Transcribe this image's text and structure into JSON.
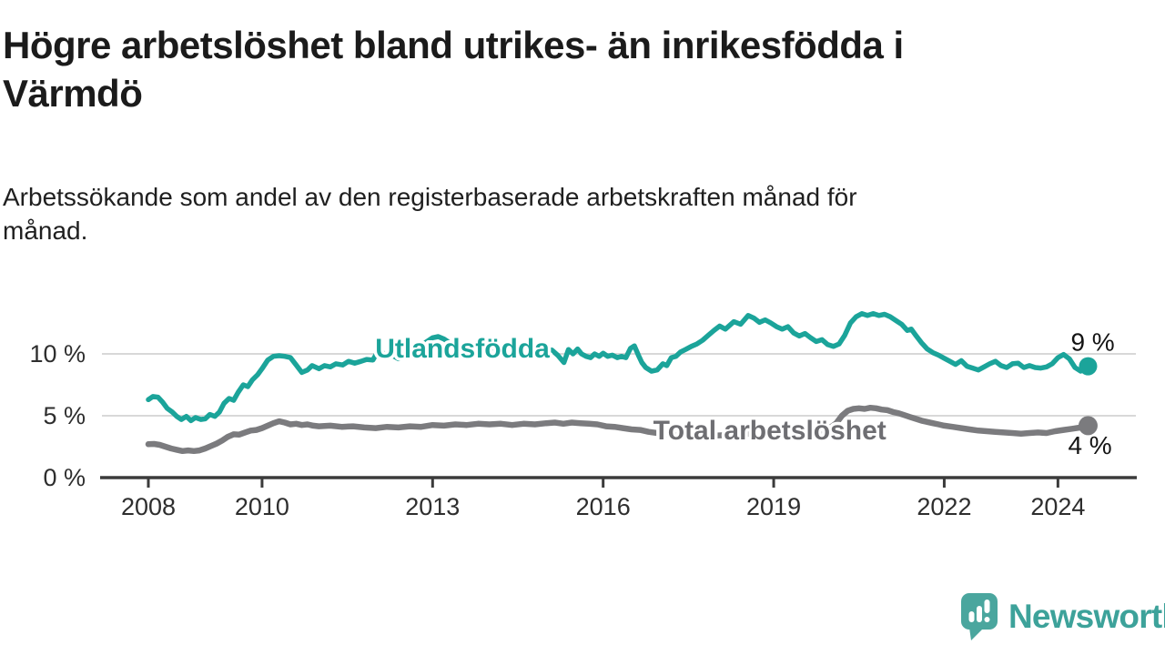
{
  "header": {
    "title": "Högre arbetslöshet bland utrikes- än inrikesfödda i\nVärmdö",
    "subtitle": "Arbetssökande som andel av den registerbaserade arbetskraften månad för\nmånad."
  },
  "branding": {
    "logo_text": "Newsworthy",
    "logo_icon": "speech-bubble-bar-chart-icon",
    "logo_bubble_color": "#4aa69e",
    "logo_text_color": "#3da29a"
  },
  "chart_data": {
    "type": "line",
    "title": "Högre arbetslöshet bland utrikes- än inrikesfödda i Värmdö",
    "subtitle": "Arbetssökande som andel av den registerbaserade arbetskraften månad för månad.",
    "unit": "%",
    "xlim": [
      2008,
      2024.6
    ],
    "ylim": [
      0,
      13.5
    ],
    "grid": "horizontal",
    "grid_values": [
      5,
      10
    ],
    "x_ticks": [
      2008,
      2010,
      2013,
      2016,
      2019,
      2022,
      2024
    ],
    "y_ticks": [
      {
        "value": 0,
        "label": "0 %"
      },
      {
        "value": 5,
        "label": "5 %"
      },
      {
        "value": 10,
        "label": "10 %"
      }
    ],
    "axis_color": "#3b3b3b",
    "grid_color": "#d8d8d8",
    "legend": "inline-labels",
    "series": [
      {
        "id": "utlandsfodda",
        "name": "Utlandsfödda",
        "color": "#1ba49a",
        "label_color": "#1ba49a",
        "label_at": [
          2011.99,
          9.71
        ],
        "end_label": "9 %",
        "end_value": 9.0,
        "points": [
          [
            2008.0,
            6.3
          ],
          [
            2008.08,
            6.55
          ],
          [
            2008.17,
            6.5
          ],
          [
            2008.25,
            6.1
          ],
          [
            2008.33,
            5.6
          ],
          [
            2008.42,
            5.3
          ],
          [
            2008.5,
            4.95
          ],
          [
            2008.58,
            4.7
          ],
          [
            2008.67,
            4.95
          ],
          [
            2008.75,
            4.6
          ],
          [
            2008.83,
            4.85
          ],
          [
            2008.92,
            4.7
          ],
          [
            2009.0,
            4.75
          ],
          [
            2009.08,
            5.1
          ],
          [
            2009.17,
            4.95
          ],
          [
            2009.25,
            5.3
          ],
          [
            2009.33,
            6.0
          ],
          [
            2009.42,
            6.4
          ],
          [
            2009.5,
            6.25
          ],
          [
            2009.58,
            6.9
          ],
          [
            2009.67,
            7.5
          ],
          [
            2009.75,
            7.35
          ],
          [
            2009.83,
            7.9
          ],
          [
            2009.92,
            8.3
          ],
          [
            2010.0,
            8.8
          ],
          [
            2010.1,
            9.5
          ],
          [
            2010.2,
            9.8
          ],
          [
            2010.3,
            9.85
          ],
          [
            2010.4,
            9.8
          ],
          [
            2010.5,
            9.7
          ],
          [
            2010.6,
            9.1
          ],
          [
            2010.7,
            8.5
          ],
          [
            2010.8,
            8.7
          ],
          [
            2010.88,
            9.05
          ],
          [
            2011.0,
            8.8
          ],
          [
            2011.1,
            9.05
          ],
          [
            2011.2,
            8.95
          ],
          [
            2011.3,
            9.2
          ],
          [
            2011.42,
            9.1
          ],
          [
            2011.52,
            9.4
          ],
          [
            2011.63,
            9.25
          ],
          [
            2011.74,
            9.4
          ],
          [
            2011.84,
            9.55
          ],
          [
            2011.95,
            9.5
          ],
          [
            2012.05,
            10.3
          ],
          [
            2012.15,
            10.0
          ],
          [
            2012.23,
            9.7
          ],
          [
            2012.3,
            9.85
          ],
          [
            2012.4,
            9.6
          ],
          [
            2012.5,
            9.75
          ],
          [
            2012.6,
            9.9
          ],
          [
            2012.7,
            10.3
          ],
          [
            2012.8,
            10.7
          ],
          [
            2012.9,
            11.0
          ],
          [
            2013.0,
            11.3
          ],
          [
            2013.1,
            11.4
          ],
          [
            2013.2,
            11.2
          ],
          [
            2013.3,
            10.9
          ],
          [
            2013.45,
            10.7
          ],
          [
            2013.6,
            10.5
          ],
          [
            2013.75,
            10.6
          ],
          [
            2013.9,
            10.4
          ],
          [
            2014.05,
            10.5
          ],
          [
            2014.2,
            10.3
          ],
          [
            2014.35,
            10.45
          ],
          [
            2014.5,
            10.3
          ],
          [
            2014.65,
            10.4
          ],
          [
            2014.8,
            10.25
          ],
          [
            2014.95,
            10.4
          ],
          [
            2015.1,
            10.3
          ],
          [
            2015.2,
            9.9
          ],
          [
            2015.31,
            9.3
          ],
          [
            2015.39,
            10.35
          ],
          [
            2015.47,
            10.0
          ],
          [
            2015.55,
            10.4
          ],
          [
            2015.62,
            10.0
          ],
          [
            2015.7,
            9.8
          ],
          [
            2015.78,
            9.7
          ],
          [
            2015.85,
            10.0
          ],
          [
            2015.93,
            9.8
          ],
          [
            2016.0,
            10.05
          ],
          [
            2016.08,
            9.8
          ],
          [
            2016.16,
            9.9
          ],
          [
            2016.25,
            9.7
          ],
          [
            2016.32,
            9.8
          ],
          [
            2016.4,
            9.7
          ],
          [
            2016.48,
            10.45
          ],
          [
            2016.55,
            10.65
          ],
          [
            2016.62,
            9.9
          ],
          [
            2016.68,
            9.3
          ],
          [
            2016.75,
            8.9
          ],
          [
            2016.85,
            8.6
          ],
          [
            2016.95,
            8.7
          ],
          [
            2017.05,
            9.2
          ],
          [
            2017.12,
            9.05
          ],
          [
            2017.2,
            9.7
          ],
          [
            2017.28,
            9.8
          ],
          [
            2017.36,
            10.15
          ],
          [
            2017.45,
            10.35
          ],
          [
            2017.55,
            10.6
          ],
          [
            2017.65,
            10.8
          ],
          [
            2017.75,
            11.1
          ],
          [
            2017.85,
            11.5
          ],
          [
            2017.95,
            11.9
          ],
          [
            2018.05,
            12.25
          ],
          [
            2018.15,
            12.0
          ],
          [
            2018.3,
            12.6
          ],
          [
            2018.42,
            12.4
          ],
          [
            2018.55,
            13.1
          ],
          [
            2018.65,
            12.9
          ],
          [
            2018.75,
            12.55
          ],
          [
            2018.85,
            12.75
          ],
          [
            2018.95,
            12.5
          ],
          [
            2019.05,
            12.2
          ],
          [
            2019.15,
            12.0
          ],
          [
            2019.25,
            12.2
          ],
          [
            2019.35,
            11.7
          ],
          [
            2019.45,
            11.45
          ],
          [
            2019.55,
            11.65
          ],
          [
            2019.65,
            11.3
          ],
          [
            2019.75,
            11.0
          ],
          [
            2019.85,
            11.15
          ],
          [
            2019.95,
            10.75
          ],
          [
            2020.05,
            10.6
          ],
          [
            2020.15,
            10.8
          ],
          [
            2020.25,
            11.5
          ],
          [
            2020.35,
            12.5
          ],
          [
            2020.45,
            13.0
          ],
          [
            2020.55,
            13.25
          ],
          [
            2020.65,
            13.1
          ],
          [
            2020.75,
            13.25
          ],
          [
            2020.85,
            13.1
          ],
          [
            2020.95,
            13.2
          ],
          [
            2021.05,
            13.0
          ],
          [
            2021.15,
            12.7
          ],
          [
            2021.25,
            12.4
          ],
          [
            2021.35,
            11.9
          ],
          [
            2021.42,
            12.0
          ],
          [
            2021.5,
            11.5
          ],
          [
            2021.6,
            10.9
          ],
          [
            2021.7,
            10.4
          ],
          [
            2021.8,
            10.1
          ],
          [
            2021.9,
            9.9
          ],
          [
            2022.0,
            9.65
          ],
          [
            2022.1,
            9.4
          ],
          [
            2022.2,
            9.15
          ],
          [
            2022.3,
            9.45
          ],
          [
            2022.4,
            9.0
          ],
          [
            2022.5,
            8.85
          ],
          [
            2022.6,
            8.7
          ],
          [
            2022.7,
            8.95
          ],
          [
            2022.8,
            9.2
          ],
          [
            2022.9,
            9.4
          ],
          [
            2023.0,
            9.05
          ],
          [
            2023.1,
            8.9
          ],
          [
            2023.2,
            9.2
          ],
          [
            2023.3,
            9.25
          ],
          [
            2023.4,
            8.9
          ],
          [
            2023.5,
            9.05
          ],
          [
            2023.6,
            8.9
          ],
          [
            2023.7,
            8.85
          ],
          [
            2023.8,
            8.95
          ],
          [
            2023.9,
            9.2
          ],
          [
            2024.0,
            9.7
          ],
          [
            2024.1,
            9.95
          ],
          [
            2024.2,
            9.6
          ],
          [
            2024.3,
            8.9
          ],
          [
            2024.4,
            8.6
          ],
          [
            2024.53,
            9.0
          ]
        ]
      },
      {
        "id": "total-arbetsloshet",
        "name": "Total arbetslöshet",
        "color": "#7b7b7e",
        "label_color": "#6e6e72",
        "label_at": [
          2016.88,
          3.09
        ],
        "end_label": "4 %",
        "end_value": 4.2,
        "points": [
          [
            2008.0,
            2.7
          ],
          [
            2008.1,
            2.72
          ],
          [
            2008.2,
            2.65
          ],
          [
            2008.3,
            2.5
          ],
          [
            2008.4,
            2.35
          ],
          [
            2008.5,
            2.25
          ],
          [
            2008.6,
            2.15
          ],
          [
            2008.7,
            2.2
          ],
          [
            2008.8,
            2.15
          ],
          [
            2008.9,
            2.2
          ],
          [
            2009.0,
            2.35
          ],
          [
            2009.1,
            2.55
          ],
          [
            2009.2,
            2.75
          ],
          [
            2009.3,
            3.0
          ],
          [
            2009.4,
            3.3
          ],
          [
            2009.5,
            3.5
          ],
          [
            2009.6,
            3.48
          ],
          [
            2009.7,
            3.65
          ],
          [
            2009.8,
            3.8
          ],
          [
            2009.9,
            3.85
          ],
          [
            2010.0,
            4.0
          ],
          [
            2010.1,
            4.2
          ],
          [
            2010.2,
            4.4
          ],
          [
            2010.3,
            4.55
          ],
          [
            2010.4,
            4.45
          ],
          [
            2010.5,
            4.3
          ],
          [
            2010.6,
            4.35
          ],
          [
            2010.7,
            4.25
          ],
          [
            2010.8,
            4.3
          ],
          [
            2010.9,
            4.2
          ],
          [
            2011.0,
            4.15
          ],
          [
            2011.2,
            4.2
          ],
          [
            2011.4,
            4.1
          ],
          [
            2011.6,
            4.15
          ],
          [
            2011.8,
            4.05
          ],
          [
            2012.0,
            4.0
          ],
          [
            2012.2,
            4.1
          ],
          [
            2012.4,
            4.05
          ],
          [
            2012.6,
            4.15
          ],
          [
            2012.8,
            4.1
          ],
          [
            2013.0,
            4.25
          ],
          [
            2013.2,
            4.2
          ],
          [
            2013.4,
            4.3
          ],
          [
            2013.6,
            4.25
          ],
          [
            2013.8,
            4.35
          ],
          [
            2014.0,
            4.3
          ],
          [
            2014.2,
            4.35
          ],
          [
            2014.4,
            4.25
          ],
          [
            2014.6,
            4.35
          ],
          [
            2014.8,
            4.3
          ],
          [
            2015.0,
            4.4
          ],
          [
            2015.15,
            4.45
          ],
          [
            2015.3,
            4.35
          ],
          [
            2015.45,
            4.45
          ],
          [
            2015.6,
            4.4
          ],
          [
            2015.75,
            4.35
          ],
          [
            2015.9,
            4.3
          ],
          [
            2016.05,
            4.15
          ],
          [
            2016.2,
            4.1
          ],
          [
            2016.35,
            4.0
          ],
          [
            2016.5,
            3.9
          ],
          [
            2016.65,
            3.85
          ],
          [
            2016.8,
            3.7
          ],
          [
            2016.95,
            3.6
          ],
          [
            2017.1,
            3.5
          ],
          [
            2017.25,
            3.4
          ],
          [
            2017.4,
            3.5
          ],
          [
            2017.55,
            3.4
          ],
          [
            2017.7,
            3.35
          ],
          [
            2017.85,
            3.4
          ],
          [
            2018.0,
            3.4
          ],
          [
            2018.2,
            3.45
          ],
          [
            2018.4,
            3.5
          ],
          [
            2018.6,
            3.55
          ],
          [
            2018.8,
            3.5
          ],
          [
            2019.0,
            3.55
          ],
          [
            2019.2,
            3.6
          ],
          [
            2019.4,
            3.65
          ],
          [
            2019.6,
            3.7
          ],
          [
            2019.8,
            3.75
          ],
          [
            2019.95,
            3.9
          ],
          [
            2020.1,
            4.4
          ],
          [
            2020.2,
            5.0
          ],
          [
            2020.3,
            5.4
          ],
          [
            2020.4,
            5.55
          ],
          [
            2020.5,
            5.6
          ],
          [
            2020.6,
            5.55
          ],
          [
            2020.7,
            5.65
          ],
          [
            2020.8,
            5.6
          ],
          [
            2020.9,
            5.5
          ],
          [
            2021.0,
            5.45
          ],
          [
            2021.1,
            5.3
          ],
          [
            2021.2,
            5.2
          ],
          [
            2021.3,
            5.05
          ],
          [
            2021.4,
            4.9
          ],
          [
            2021.5,
            4.75
          ],
          [
            2021.6,
            4.6
          ],
          [
            2021.7,
            4.5
          ],
          [
            2021.8,
            4.4
          ],
          [
            2021.9,
            4.3
          ],
          [
            2022.0,
            4.2
          ],
          [
            2022.15,
            4.1
          ],
          [
            2022.3,
            4.0
          ],
          [
            2022.45,
            3.9
          ],
          [
            2022.6,
            3.8
          ],
          [
            2022.75,
            3.75
          ],
          [
            2022.9,
            3.7
          ],
          [
            2023.05,
            3.65
          ],
          [
            2023.2,
            3.6
          ],
          [
            2023.35,
            3.55
          ],
          [
            2023.5,
            3.6
          ],
          [
            2023.65,
            3.65
          ],
          [
            2023.8,
            3.6
          ],
          [
            2023.95,
            3.75
          ],
          [
            2024.1,
            3.85
          ],
          [
            2024.25,
            3.95
          ],
          [
            2024.4,
            4.05
          ],
          [
            2024.53,
            4.2
          ]
        ]
      }
    ]
  }
}
